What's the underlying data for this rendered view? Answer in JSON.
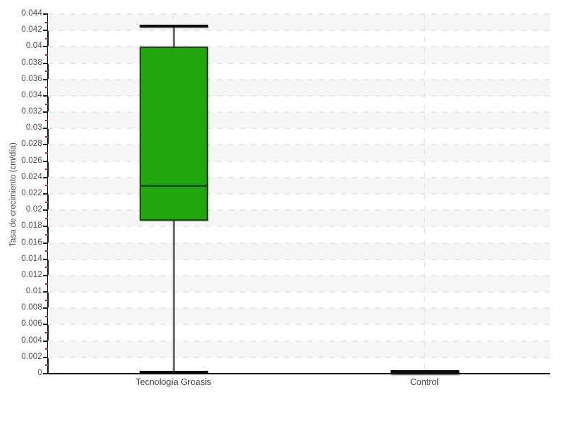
{
  "chart_data": {
    "type": "boxplot",
    "title": "",
    "xlabel": "",
    "ylabel": "Tasa de crecimiento (cm/día)",
    "ylim": [
      0,
      0.044
    ],
    "y_major_step": 0.002,
    "y_minor_step": 0.001,
    "grid": "dashed horizontal at each 0.002 step, dashed vertical at each category, alternating shaded bands",
    "legend": "none",
    "y_tick_labels": [
      "0",
      "0.002",
      "0.004",
      "0.006",
      "0.008",
      "0.01",
      "0.012",
      "0.014",
      "0.016",
      "0.018",
      "0.02",
      "0.022",
      "0.024",
      "0.026",
      "0.028",
      "0.03",
      "0.032",
      "0.034",
      "0.036",
      "0.038",
      "0.04",
      "0.042",
      "0.044"
    ],
    "categories": [
      "Tecnología Groasis",
      "Control"
    ],
    "series": [
      {
        "name": "Tecnología Groasis",
        "min": 0.0002,
        "q1": 0.0187,
        "median": 0.023,
        "q3": 0.04,
        "max": 0.0425
      },
      {
        "name": "Control",
        "min": 0.0001,
        "q1": 0.00015,
        "median": 0.0002,
        "q3": 0.00025,
        "max": 0.0003
      }
    ],
    "colors": {
      "box_fill": "#21a60e",
      "box_border": "#333333",
      "median_line": "#0b5c0b",
      "whisker_line": "#6b6b6b",
      "whisker_cap": "#0d0d0d",
      "axis": "#111111",
      "major_tick": "#222222",
      "minor_tick": "#d32b24",
      "grid_dash": "#e7e7e7",
      "band_shade": "#f6f6f6",
      "tick_text": "#4d4d4d"
    }
  }
}
